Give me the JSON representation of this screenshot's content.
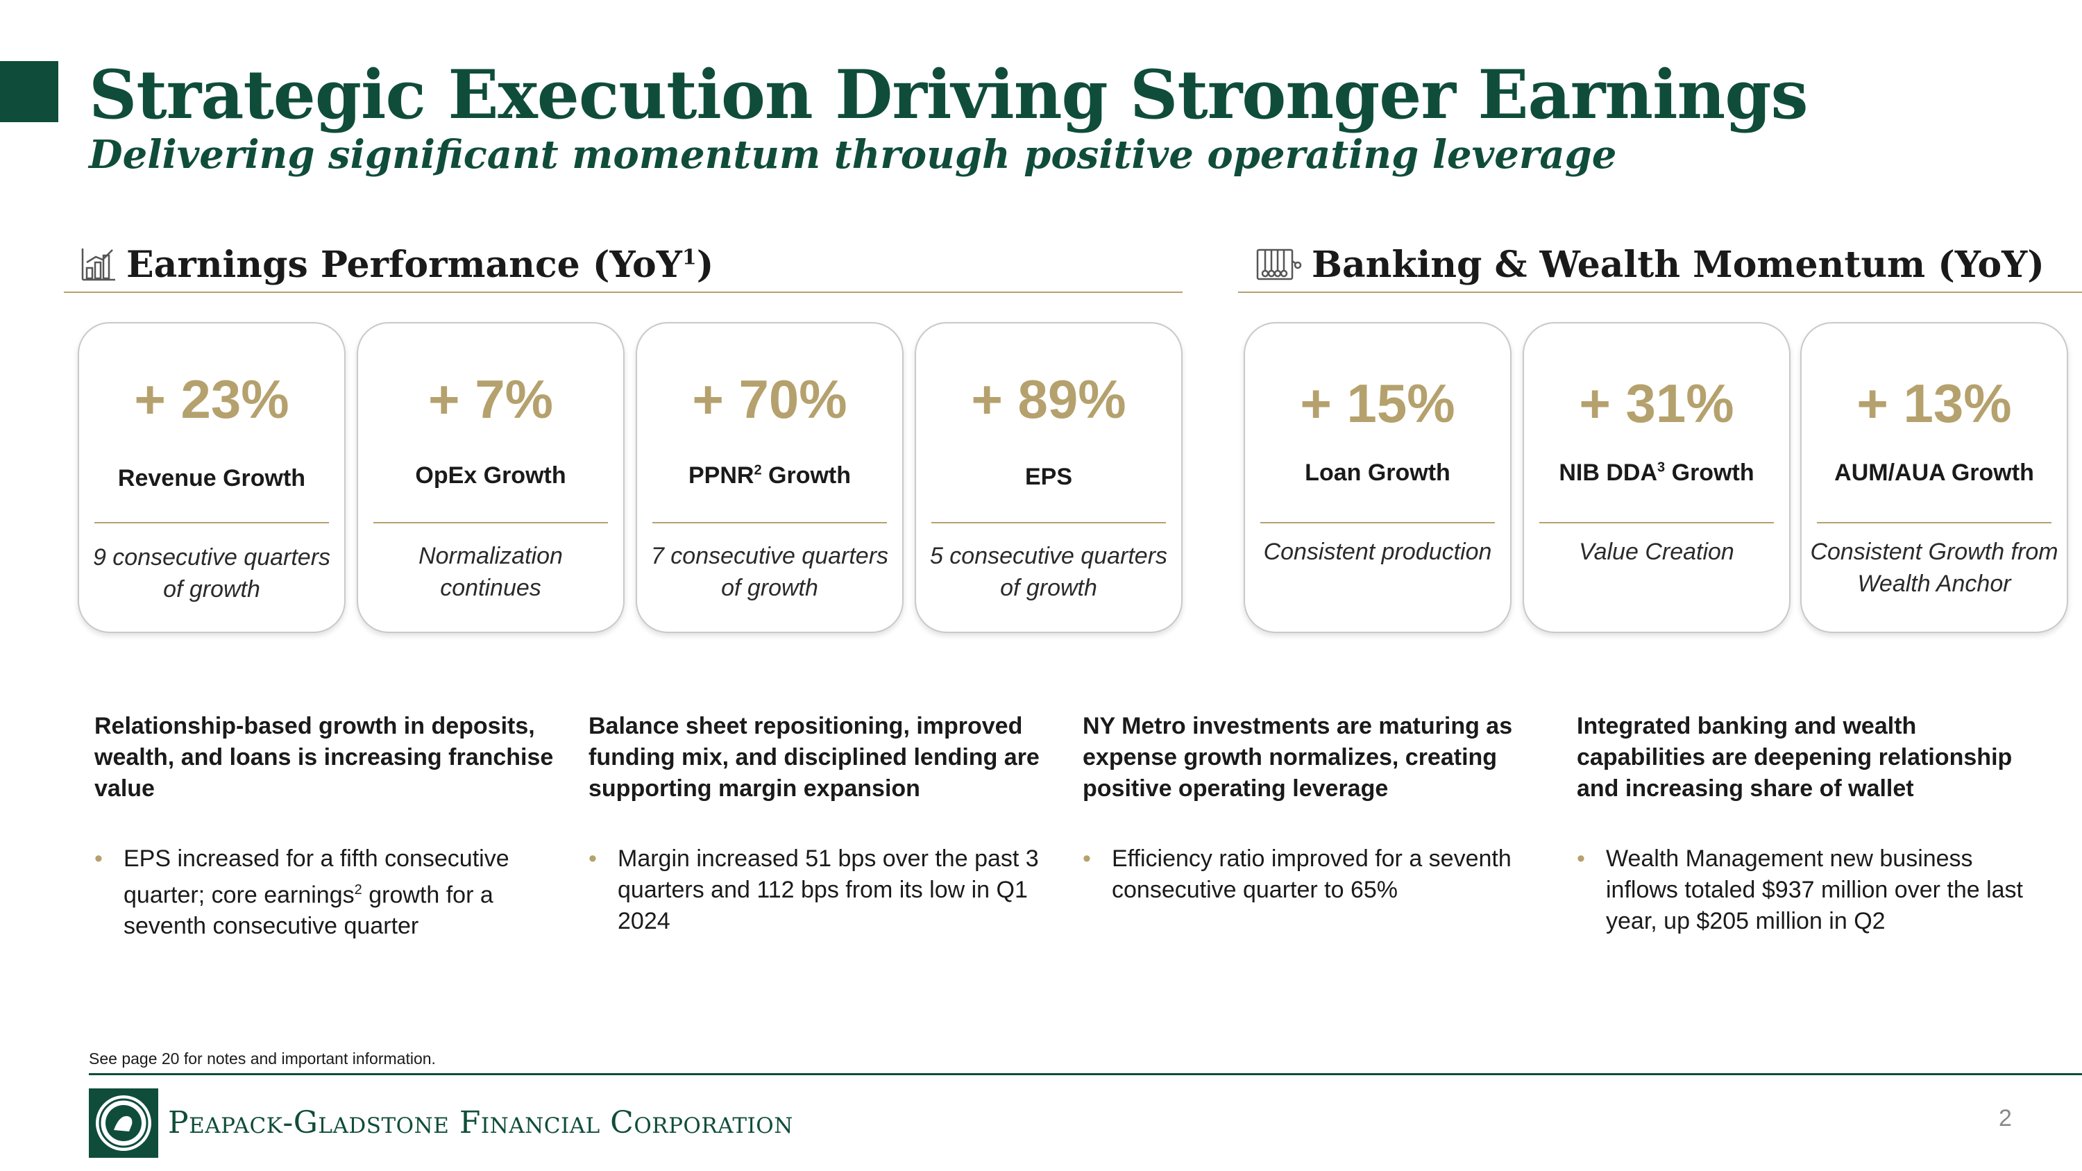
{
  "header": {
    "title": "Strategic Execution Driving Stronger Earnings",
    "subtitle": "Delivering significant momentum through positive operating leverage"
  },
  "sections": {
    "earnings": {
      "label": "Earnings Performance (YoY",
      "sup": "1",
      "suffix": ")",
      "icon": "bar-chart-icon"
    },
    "banking": {
      "label": "Banking & Wealth Momentum (YoY)",
      "icon": "newtons-cradle-icon"
    }
  },
  "cards": [
    {
      "value": "+ 23%",
      "name": "Revenue Growth",
      "sup": "",
      "name_suffix": "",
      "note": "9 consecutive quarters of growth"
    },
    {
      "value": "+ 7%",
      "name": "OpEx Growth",
      "sup": "",
      "name_suffix": "",
      "note": "Normalization continues"
    },
    {
      "value": "+ 70%",
      "name": "PPNR",
      "sup": "2",
      "name_suffix": " Growth",
      "note": "7 consecutive quarters of growth"
    },
    {
      "value": "+ 89%",
      "name": "EPS",
      "sup": "",
      "name_suffix": "",
      "note": "5 consecutive quarters of growth"
    },
    {
      "value": "+ 15%",
      "name": "Loan Growth",
      "sup": "",
      "name_suffix": "",
      "note": "Consistent production"
    },
    {
      "value": "+ 31%",
      "name": "NIB DDA",
      "sup": "3",
      "name_suffix": " Growth",
      "note": "Value Creation"
    },
    {
      "value": "+ 13%",
      "name": "AUM/AUA Growth",
      "sup": "",
      "name_suffix": "",
      "note": "Consistent Growth from Wealth Anchor"
    }
  ],
  "columns": [
    {
      "heading": "Relationship-based growth in deposits, wealth, and loans is increasing franchise value",
      "bullet_a": "EPS increased for a fifth consecutive quarter; core earnings",
      "bullet_sup": "2",
      "bullet_b": " growth for a seventh consecutive quarter"
    },
    {
      "heading": "Balance sheet repositioning, improved funding mix, and disciplined lending are supporting margin expansion",
      "bullet_a": "Margin increased 51 bps over the past 3 quarters and 112 bps from its low in Q1 2024",
      "bullet_sup": "",
      "bullet_b": ""
    },
    {
      "heading": "NY Metro investments are maturing as expense growth normalizes, creating positive operating leverage",
      "bullet_a": "Efficiency ratio improved for a seventh consecutive quarter to 65%",
      "bullet_sup": "",
      "bullet_b": ""
    },
    {
      "heading": "Integrated banking and wealth capabilities are deepening relationship and increasing share of wallet",
      "bullet_a": "Wealth Management new business inflows totaled $937 million over the last year, up $205 million in Q2",
      "bullet_sup": "",
      "bullet_b": ""
    }
  ],
  "bullet_glyph": "•",
  "footer": {
    "footnote": "See page 20 for notes and important information.",
    "company": "Peapack-Gladstone Financial Corporation",
    "page_number": "2"
  },
  "colors": {
    "brand_green": "#0f4d3a",
    "accent_gold": "#b5a16d"
  }
}
